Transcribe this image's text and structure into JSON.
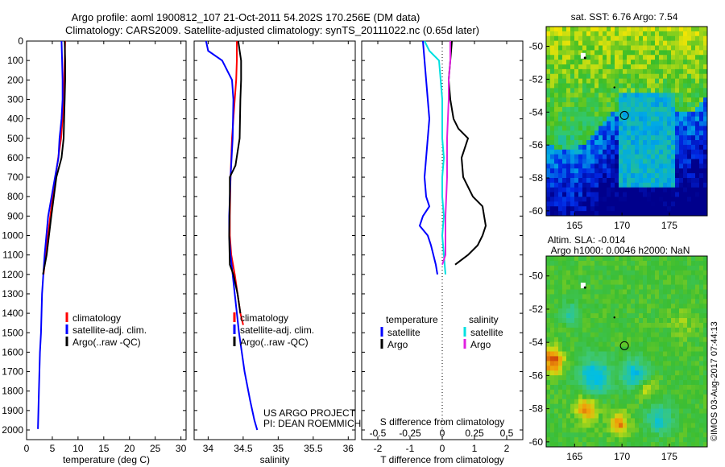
{
  "header": {
    "line1": "Argo profile: aoml 1900812_107 21-Oct-2011 54.202S 170.256E (DM data)",
    "line2": "Climatology: CARS2009. Satellite-adjusted climatology: synTS_20111022.nc (0.65d later)"
  },
  "colors": {
    "climatology": "#ff0000",
    "satellite": "#0000ff",
    "argo": "#000000",
    "salinity_satellite": "#00e0e0",
    "salinity_argo": "#e020e0"
  },
  "chart_data": [
    {
      "type": "line",
      "xlabel": "temperature (deg C)",
      "xlim": [
        0,
        31
      ],
      "xticks": [
        "0",
        "5",
        "10",
        "15",
        "20",
        "25",
        "30"
      ],
      "ylim": [
        0,
        2050
      ],
      "yticks": [
        "0",
        "100",
        "200",
        "300",
        "400",
        "500",
        "600",
        "700",
        "800",
        "900",
        "1000",
        "1100",
        "1200",
        "1300",
        "1400",
        "1500",
        "1600",
        "1700",
        "1800",
        "1900",
        "2000"
      ],
      "legend": [
        "climatology",
        "satellite-adj. clim.",
        "Argo(..raw -QC)"
      ],
      "series": [
        {
          "name": "climatology",
          "x": [
            7.5,
            7.4,
            7.3,
            7.2,
            7.0,
            6.7,
            5.6,
            4.6,
            3.7,
            3.3
          ],
          "y": [
            0,
            100,
            200,
            300,
            400,
            500,
            700,
            900,
            1100,
            1200
          ]
        },
        {
          "name": "satellite-adj. clim.",
          "x": [
            6.8,
            6.9,
            7.0,
            7.0,
            6.8,
            6.4,
            6.2,
            5.2,
            4.2,
            3.5,
            3.0,
            2.8,
            2.6,
            2.4,
            2.3,
            2.2
          ],
          "y": [
            0,
            100,
            200,
            300,
            400,
            500,
            600,
            750,
            900,
            1100,
            1300,
            1500,
            1600,
            1800,
            1900,
            1995
          ]
        },
        {
          "name": "Argo(..raw -QC)",
          "x": [
            7.4,
            7.5,
            7.5,
            7.4,
            7.3,
            7.2,
            6.8,
            5.8,
            4.8,
            3.9,
            3.2
          ],
          "y": [
            0,
            100,
            200,
            300,
            400,
            500,
            600,
            700,
            900,
            1100,
            1200
          ]
        }
      ]
    },
    {
      "type": "line",
      "xlabel": "salinity",
      "xlim": [
        33.8,
        36.1
      ],
      "xticks": [
        "34",
        "34.5",
        "35",
        "35.5",
        "36"
      ],
      "ylim": [
        0,
        2050
      ],
      "legend": [
        "climatology",
        "satellite-adj. clim.",
        "Argo(..raw -QC)"
      ],
      "annotation": [
        "US ARGO PROJECT",
        "PI: DEAN ROEMMICH"
      ],
      "series": [
        {
          "name": "climatology",
          "x": [
            34.41,
            34.41,
            34.4,
            34.38,
            34.34,
            34.32,
            34.31,
            34.31,
            34.33,
            34.38,
            34.42,
            34.46,
            34.5
          ],
          "y": [
            0,
            100,
            200,
            300,
            500,
            700,
            900,
            1000,
            1100,
            1200,
            1300,
            1400,
            1460
          ]
        },
        {
          "name": "satellite-adj. clim.",
          "x": [
            33.97,
            34.0,
            34.2,
            34.34,
            34.36,
            34.35,
            34.32,
            34.3,
            34.3,
            34.32,
            34.38,
            34.44,
            34.52,
            34.6,
            34.66,
            34.7
          ],
          "y": [
            0,
            50,
            100,
            200,
            300,
            500,
            700,
            900,
            1000,
            1100,
            1300,
            1500,
            1700,
            1850,
            1950,
            2000
          ]
        },
        {
          "name": "Argo(..raw -QC)",
          "x": [
            34.43,
            34.45,
            34.47,
            34.47,
            34.46,
            34.45,
            34.39,
            34.31,
            34.31,
            34.3,
            34.31,
            34.36,
            34.42,
            34.46
          ],
          "y": [
            0,
            50,
            100,
            200,
            300,
            500,
            640,
            700,
            800,
            1000,
            1150,
            1200,
            1300,
            1400
          ]
        }
      ]
    },
    {
      "type": "line",
      "xlabel": "T difference from climatology",
      "xlabel_top": "S difference from climatology",
      "xlim": [
        -2.5,
        2.5
      ],
      "xticks": [
        "-2",
        "-1",
        "0",
        "1",
        "2"
      ],
      "xticks_top": [
        "-0.5",
        "-0.25",
        "0",
        "0.25",
        "0.5"
      ],
      "ylim": [
        0,
        2050
      ],
      "legend_titles": [
        "temperature",
        "salinity"
      ],
      "legend": [
        "satellite",
        "Argo",
        "satellite",
        "Argo"
      ],
      "series": [
        {
          "name": "satellite",
          "x": [
            -0.6,
            -0.55,
            -0.5,
            -0.45,
            -0.4,
            -0.45,
            -0.5,
            -0.55,
            -0.5,
            -0.4,
            -0.6,
            -0.7,
            -0.45,
            -0.35,
            -0.2,
            -0.15
          ],
          "y": [
            0,
            100,
            200,
            300,
            400,
            500,
            600,
            700,
            800,
            850,
            900,
            950,
            1000,
            1050,
            1150,
            1200
          ]
        },
        {
          "name": "Argo",
          "x": [
            0.3,
            0.25,
            0.2,
            0.25,
            0.35,
            0.5,
            0.8,
            0.6,
            0.65,
            0.95,
            1.25,
            1.3,
            1.35,
            1.25,
            1.1,
            0.8,
            0.4
          ],
          "y": [
            0,
            100,
            200,
            300,
            400,
            450,
            500,
            600,
            700,
            800,
            850,
            900,
            950,
            1000,
            1050,
            1100,
            1150
          ]
        },
        {
          "name": "satellite",
          "x": [
            -0.55,
            -0.4,
            -0.1,
            -0.05,
            0.0,
            0.0,
            0.05,
            0.0,
            0.0,
            0.05,
            0.0,
            0.05,
            0.1
          ],
          "y": [
            0,
            50,
            100,
            200,
            300,
            500,
            600,
            700,
            800,
            900,
            1000,
            1100,
            1200
          ]
        },
        {
          "name": "Argo",
          "x": [
            0.25,
            0.25,
            0.2,
            0.2,
            0.15,
            0.15,
            0.1,
            0.1,
            0.0
          ],
          "y": [
            0,
            100,
            200,
            300,
            500,
            700,
            900,
            1100,
            1150
          ]
        }
      ]
    },
    {
      "type": "heatmap",
      "title": "sat. SST: 6.76 Argo: 7.54",
      "xlim": [
        162,
        179
      ],
      "ylim": [
        -60.3,
        -48.8
      ],
      "xticks": [
        "165",
        "170",
        "175"
      ],
      "yticks": [
        "-50",
        "-52",
        "-54",
        "-56",
        "-58",
        "-60"
      ],
      "marker": {
        "lon": 170.256,
        "lat": -54.202
      }
    },
    {
      "type": "heatmap",
      "title": "Altim. SLA: -0.014",
      "subtitle": "Argo h1000: 0.0046 h2000: NaN",
      "xlim": [
        162,
        179
      ],
      "ylim": [
        -60.3,
        -48.8
      ],
      "xticks": [
        "165",
        "170",
        "175"
      ],
      "yticks": [
        "-50",
        "-52",
        "-54",
        "-56",
        "-58",
        "-60"
      ],
      "marker": {
        "lon": 170.256,
        "lat": -54.202
      }
    }
  ],
  "footer": {
    "credit": "©IMOS 03-Aug-2017 07:44:13"
  }
}
